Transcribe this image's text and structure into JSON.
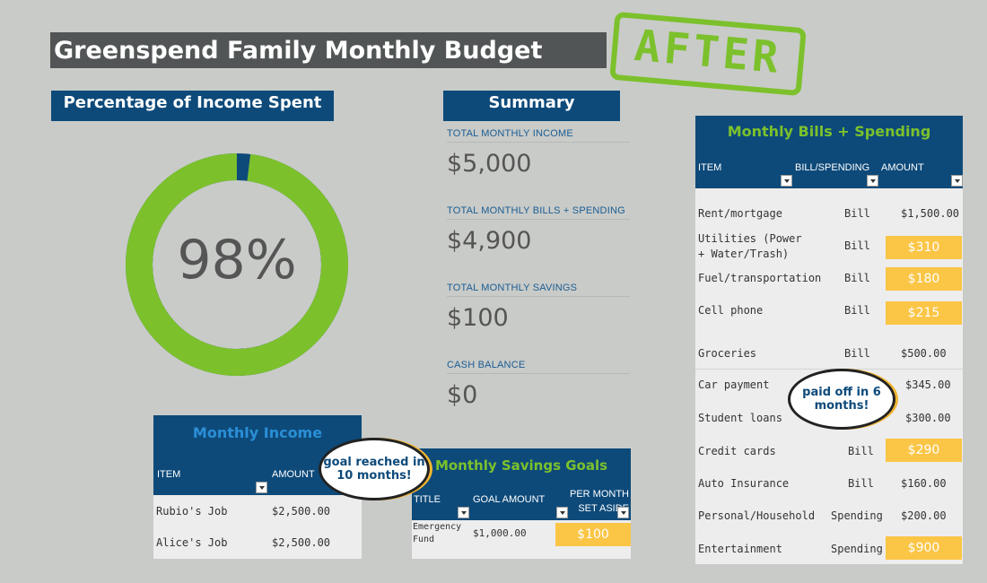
{
  "title": "Greenspend Family Monthly Budget",
  "stamp": "AFTER",
  "percentage": {
    "heading": "Percentage of Income Spent",
    "value_label": "98%",
    "spent_fraction": 0.98,
    "colors": {
      "spent": "#7cc12c",
      "remaining": "#0d4a7a"
    }
  },
  "summary": {
    "heading": "Summary",
    "items": [
      {
        "label": "TOTAL MONTHLY INCOME",
        "value": "$5,000"
      },
      {
        "label": "TOTAL MONTHLY BILLS + SPENDING",
        "value": "$4,900"
      },
      {
        "label": "TOTAL MONTHLY SAVINGS",
        "value": "$100"
      },
      {
        "label": "CASH BALANCE",
        "value": "$0"
      }
    ]
  },
  "bills": {
    "title": "Monthly Bills + Spending",
    "columns": [
      "ITEM",
      "BILL/SPENDING",
      "AMOUNT"
    ],
    "rows": [
      {
        "item": "Rent/mortgage",
        "type": "Bill",
        "amount": "$1,500.00",
        "highlight": false
      },
      {
        "item": "Utilities (Power + Water/Trash)",
        "type": "Bill",
        "amount": "$310",
        "highlight": true
      },
      {
        "item": "Fuel/transportation",
        "type": "Bill",
        "amount": "$180",
        "highlight": true
      },
      {
        "item": "Cell phone",
        "type": "Bill",
        "amount": "$215",
        "highlight": true
      },
      {
        "item": "Groceries",
        "type": "Bill",
        "amount": "$500.00",
        "highlight": false
      },
      {
        "item": "Car payment",
        "type": "",
        "amount": "$345.00",
        "highlight": false
      },
      {
        "item": "Student loans",
        "type": "",
        "amount": "$300.00",
        "highlight": false
      },
      {
        "item": "Credit cards",
        "type": "Bill",
        "amount": "$290",
        "highlight": true
      },
      {
        "item": "Auto Insurance",
        "type": "Bill",
        "amount": "$160.00",
        "highlight": false
      },
      {
        "item": "Personal/Household",
        "type": "Spending",
        "amount": "$200.00",
        "highlight": false
      },
      {
        "item": "Entertainment",
        "type": "Spending",
        "amount": "$900",
        "highlight": true
      }
    ]
  },
  "income": {
    "title": "Monthly Income",
    "columns": [
      "ITEM",
      "AMOUNT"
    ],
    "rows": [
      {
        "item": "Rubio's Job",
        "amount": "$2,500.00"
      },
      {
        "item": "Alice's Job",
        "amount": "$2,500.00"
      }
    ]
  },
  "savings": {
    "title": "Monthly Savings Goals",
    "columns": [
      "TITLE",
      "GOAL AMOUNT",
      "PER MONTH SET ASIDE"
    ],
    "rows": [
      {
        "title": "Emergency Fund",
        "goal": "$1,000.00",
        "per_month": "$100"
      }
    ]
  },
  "callouts": {
    "bills": "paid off in 6 months!",
    "savings": "goal reached in 10 months!"
  },
  "colors": {
    "navy": "#0d4a7a",
    "green": "#7cc12c",
    "highlight": "#fbc546",
    "title_bar": "#525556"
  }
}
